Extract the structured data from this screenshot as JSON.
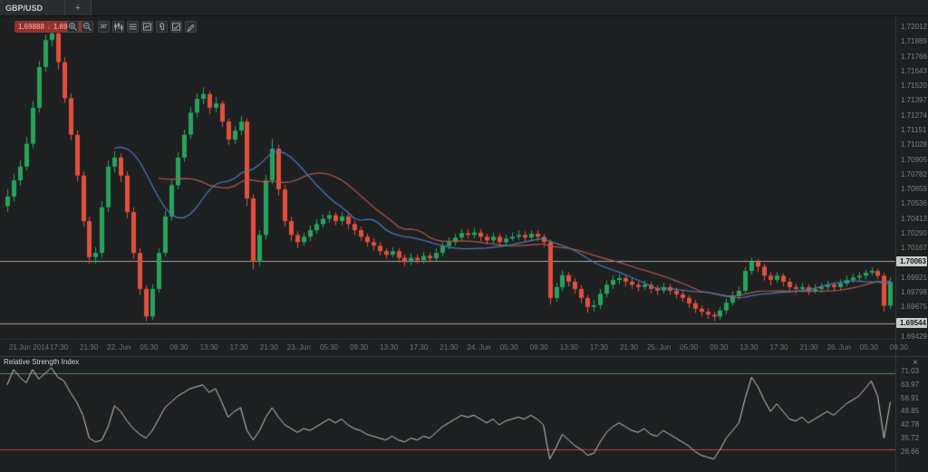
{
  "tab_bar": {
    "active_tab": "GBP/USD",
    "new_tab_label": "+"
  },
  "quote_badge": {
    "bid": "1.69888",
    "direction_icon": "↓",
    "ask": "1.69917"
  },
  "toolbar": {
    "timeframe_label": "30'",
    "buttons": [
      "zoom-in",
      "zoom-out",
      "timeframe-30min",
      "chart-type-candles",
      "indicators-list",
      "indicator-window",
      "attach",
      "chart-template",
      "draw-tools"
    ]
  },
  "colors": {
    "bull": "#26a35f",
    "bear": "#e0513d",
    "ma_fast": "#4a7ab5",
    "ma_slow": "#b05a50",
    "rsi_line": "#c7cacc",
    "overbought_line": "#3f8b4b",
    "oversold_line": "#a64a42",
    "price_line": "#a8a8a8",
    "badge_bg": "#c9cbcc",
    "quote_bg": "#8e332d",
    "quote_text": "#ef8e85",
    "background": "#1e1f20"
  },
  "rsi_panel": {
    "title": "Relative Strength Index",
    "close_label": "×"
  },
  "chart_data": {
    "type": "candlestick",
    "instrument": "GBP/USD",
    "y_axis": {
      "top_price": 1.72012,
      "bottom_price": 1.69429,
      "ticks": [
        "1.72012",
        "1.71889",
        "1.71766",
        "1.71643",
        "1.71520",
        "1.71397",
        "1.71274",
        "1.71151",
        "1.71028",
        "1.70905",
        "1.70782",
        "1.70659",
        "1.70536",
        "1.70413",
        "1.70290",
        "1.70167",
        "1.69921",
        "1.69798",
        "1.69675",
        "1.69429"
      ]
    },
    "x_axis": {
      "labels": [
        "21 Jun 2014",
        "17:30",
        "21:30",
        "22. Jun",
        "05:30",
        "09:30",
        "13:30",
        "17:30",
        "21:30",
        "23. Jun",
        "05:30",
        "09:30",
        "13:30",
        "17:30",
        "21:30",
        "24. Jun",
        "05:30",
        "09:30",
        "13:30",
        "17:30",
        "21:30",
        "25. Jun",
        "05:30",
        "09:30",
        "13:30",
        "17:30",
        "21:30",
        "26. Jun",
        "05:30",
        "09:30"
      ]
    },
    "price_lines": [
      {
        "price": 1.70063,
        "label": "1.70063"
      },
      {
        "price": 1.69544,
        "label": "1.69544"
      }
    ],
    "series": [
      {
        "name": "ma-fast",
        "kind": "sma",
        "window": 18
      },
      {
        "name": "ma-slow",
        "kind": "sma",
        "window": 25
      }
    ],
    "candles_scale": 100000,
    "candles": [
      [
        170520,
        170665,
        170470,
        170600
      ],
      [
        170600,
        170790,
        170560,
        170735
      ],
      [
        170735,
        170905,
        170690,
        170850
      ],
      [
        170850,
        171100,
        170820,
        171040
      ],
      [
        171040,
        171395,
        171000,
        171340
      ],
      [
        171340,
        171730,
        171300,
        171680
      ],
      [
        171680,
        171950,
        171640,
        171905
      ],
      [
        171905,
        171995,
        171850,
        171960
      ],
      [
        171960,
        171980,
        171660,
        171720
      ],
      [
        171720,
        171760,
        171380,
        171420
      ],
      [
        171420,
        171460,
        171070,
        171115
      ],
      [
        171115,
        171150,
        170730,
        170775
      ],
      [
        170775,
        170810,
        170350,
        170395
      ],
      [
        170395,
        170430,
        170040,
        170095
      ],
      [
        170095,
        170180,
        170040,
        170130
      ],
      [
        170130,
        170560,
        170090,
        170510
      ],
      [
        170510,
        170900,
        170470,
        170850
      ],
      [
        170850,
        170980,
        170800,
        170925
      ],
      [
        170925,
        170960,
        170720,
        170775
      ],
      [
        170775,
        170810,
        170420,
        170470
      ],
      [
        170470,
        170510,
        170080,
        170130
      ],
      [
        170130,
        170170,
        169780,
        169830
      ],
      [
        169830,
        169860,
        169560,
        169600
      ],
      [
        169600,
        169870,
        169570,
        169830
      ],
      [
        169830,
        170170,
        169800,
        170130
      ],
      [
        170130,
        170480,
        170100,
        170435
      ],
      [
        170435,
        170740,
        170400,
        170695
      ],
      [
        170695,
        170970,
        170660,
        170925
      ],
      [
        170925,
        171160,
        170890,
        171115
      ],
      [
        171115,
        171345,
        171080,
        171300
      ],
      [
        171300,
        171460,
        171260,
        171415
      ],
      [
        171415,
        171510,
        171370,
        171455
      ],
      [
        171455,
        171480,
        171290,
        171340
      ],
      [
        171340,
        171430,
        171300,
        171375
      ],
      [
        171375,
        171400,
        171180,
        171225
      ],
      [
        171225,
        171250,
        171030,
        171075
      ],
      [
        171075,
        171190,
        171040,
        171150
      ],
      [
        171150,
        171270,
        171110,
        171225
      ],
      [
        171225,
        171250,
        170520,
        170585
      ],
      [
        170585,
        170620,
        169990,
        170055
      ],
      [
        170055,
        170320,
        170020,
        170280
      ],
      [
        170280,
        170780,
        170240,
        170735
      ],
      [
        170735,
        171080,
        170700,
        171000
      ],
      [
        171000,
        171030,
        170610,
        170660
      ],
      [
        170660,
        170700,
        170350,
        170395
      ],
      [
        170395,
        170430,
        170230,
        170280
      ],
      [
        170280,
        170310,
        170170,
        170220
      ],
      [
        170220,
        170300,
        170190,
        170265
      ],
      [
        170265,
        170360,
        170230,
        170320
      ],
      [
        170320,
        170410,
        170290,
        170370
      ],
      [
        170370,
        170450,
        170340,
        170415
      ],
      [
        170415,
        170480,
        170380,
        170445
      ],
      [
        170445,
        170470,
        170360,
        170395
      ],
      [
        170395,
        170470,
        170360,
        170435
      ],
      [
        170435,
        170460,
        170330,
        170370
      ],
      [
        170370,
        170400,
        170280,
        170320
      ],
      [
        170320,
        170350,
        170230,
        170265
      ],
      [
        170265,
        170290,
        170180,
        170220
      ],
      [
        170220,
        170250,
        170150,
        170190
      ],
      [
        170190,
        170220,
        170110,
        170145
      ],
      [
        170145,
        170170,
        170080,
        170115
      ],
      [
        170115,
        170180,
        170090,
        170145
      ],
      [
        170145,
        170170,
        170050,
        170090
      ],
      [
        170090,
        170120,
        170020,
        170055
      ],
      [
        170055,
        170130,
        170030,
        170090
      ],
      [
        170090,
        170120,
        170040,
        170070
      ],
      [
        170070,
        170140,
        170040,
        170105
      ],
      [
        170105,
        170130,
        170050,
        170085
      ],
      [
        170085,
        170170,
        170060,
        170130
      ],
      [
        170130,
        170220,
        170100,
        170190
      ],
      [
        170190,
        170260,
        170160,
        170220
      ],
      [
        170220,
        170290,
        170190,
        170258
      ],
      [
        170258,
        170330,
        170230,
        170295
      ],
      [
        170295,
        170330,
        170250,
        170280
      ],
      [
        170280,
        170340,
        170250,
        170300
      ],
      [
        170300,
        170330,
        170230,
        170265
      ],
      [
        170265,
        170290,
        170200,
        170235
      ],
      [
        170235,
        170300,
        170210,
        170265
      ],
      [
        170265,
        170290,
        170190,
        170220
      ],
      [
        170220,
        170280,
        170190,
        170250
      ],
      [
        170250,
        170300,
        170230,
        170265
      ],
      [
        170265,
        170320,
        170240,
        170280
      ],
      [
        170280,
        170310,
        170220,
        170258
      ],
      [
        170258,
        170320,
        170230,
        170290
      ],
      [
        170290,
        170320,
        170230,
        170265
      ],
      [
        170265,
        170290,
        170180,
        170220
      ],
      [
        170220,
        170240,
        169700,
        169755
      ],
      [
        169755,
        169880,
        169720,
        169845
      ],
      [
        169845,
        169985,
        169810,
        169945
      ],
      [
        169945,
        169970,
        169850,
        169890
      ],
      [
        169890,
        169920,
        169790,
        169830
      ],
      [
        169830,
        169860,
        169710,
        169755
      ],
      [
        169755,
        169780,
        169630,
        169680
      ],
      [
        169680,
        169740,
        169640,
        169695
      ],
      [
        169695,
        169830,
        169660,
        169790
      ],
      [
        169790,
        169900,
        169760,
        169865
      ],
      [
        169865,
        169940,
        169830,
        169905
      ],
      [
        169905,
        169955,
        169870,
        169920
      ],
      [
        169920,
        169945,
        169850,
        169890
      ],
      [
        169890,
        169920,
        169830,
        169865
      ],
      [
        169865,
        169890,
        169810,
        169845
      ],
      [
        169845,
        169900,
        169820,
        169865
      ],
      [
        169865,
        169890,
        169790,
        169830
      ],
      [
        169830,
        169860,
        169780,
        169815
      ],
      [
        169815,
        169880,
        169790,
        169845
      ],
      [
        169845,
        169870,
        169780,
        169815
      ],
      [
        169815,
        169840,
        169750,
        169785
      ],
      [
        169785,
        169810,
        169720,
        169755
      ],
      [
        169755,
        169780,
        169670,
        169710
      ],
      [
        169710,
        169740,
        169630,
        169665
      ],
      [
        169665,
        169690,
        169600,
        169640
      ],
      [
        169640,
        169670,
        169580,
        169615
      ],
      [
        169615,
        169640,
        169560,
        169600
      ],
      [
        169600,
        169680,
        169570,
        169650
      ],
      [
        169650,
        169750,
        169620,
        169715
      ],
      [
        169715,
        169810,
        169690,
        169770
      ],
      [
        169770,
        169850,
        169740,
        169815
      ],
      [
        169815,
        170010,
        169790,
        169980
      ],
      [
        169980,
        170090,
        169950,
        170055
      ],
      [
        170055,
        170080,
        169970,
        170015
      ],
      [
        170015,
        170040,
        169900,
        169940
      ],
      [
        169940,
        169970,
        169860,
        169905
      ],
      [
        169905,
        169970,
        169880,
        169940
      ],
      [
        169940,
        169960,
        169850,
        169890
      ],
      [
        169890,
        169920,
        169800,
        169845
      ],
      [
        169845,
        169870,
        169790,
        169830
      ],
      [
        169830,
        169880,
        169800,
        169845
      ],
      [
        169845,
        169870,
        169780,
        169815
      ],
      [
        169815,
        169870,
        169790,
        169830
      ],
      [
        169830,
        169880,
        169800,
        169845
      ],
      [
        169845,
        169900,
        169820,
        169865
      ],
      [
        169865,
        169890,
        169810,
        169845
      ],
      [
        169845,
        169910,
        169820,
        169875
      ],
      [
        169875,
        169940,
        169850,
        169905
      ],
      [
        169905,
        169960,
        169880,
        169925
      ],
      [
        169925,
        169970,
        169900,
        169940
      ],
      [
        169940,
        169990,
        169910,
        169965
      ],
      [
        169965,
        170010,
        169940,
        169980
      ],
      [
        169980,
        170000,
        169910,
        169940
      ],
      [
        169940,
        169965,
        169640,
        169690
      ],
      [
        169690,
        169930,
        169660,
        169888
      ]
    ],
    "rsi": {
      "title": "Relative Strength Index",
      "overbought": 70,
      "oversold": 30,
      "ticks": [
        "71.03",
        "63.97",
        "56.91",
        "49.85",
        "42.78",
        "35.72",
        "28.66"
      ],
      "values": [
        64,
        72,
        68,
        65,
        72,
        67,
        70,
        73,
        68,
        66,
        60,
        55,
        48,
        36,
        34,
        35,
        42,
        53,
        50,
        45,
        41,
        38,
        36,
        40,
        46,
        52,
        55,
        58,
        60,
        62,
        63,
        64,
        60,
        62,
        55,
        47,
        50,
        52,
        40,
        35,
        40,
        47,
        52,
        47,
        43,
        41,
        39,
        41,
        40,
        42,
        44,
        46,
        44,
        46,
        43,
        41,
        40,
        38,
        37,
        36,
        35,
        37,
        35,
        34,
        36,
        35,
        37,
        36,
        39,
        42,
        44,
        46,
        48,
        47,
        48,
        46,
        44,
        46,
        43,
        45,
        46,
        47,
        46,
        48,
        46,
        43,
        25,
        31,
        38,
        35,
        32,
        30,
        27,
        28,
        34,
        39,
        42,
        44,
        42,
        40,
        39,
        41,
        38,
        37,
        40,
        38,
        36,
        34,
        32,
        29,
        27,
        26,
        25,
        30,
        36,
        40,
        44,
        57,
        68,
        63,
        56,
        50,
        54,
        50,
        46,
        45,
        47,
        44,
        46,
        48,
        50,
        48,
        51,
        54,
        56,
        58,
        62,
        66,
        58,
        36,
        55
      ]
    }
  }
}
